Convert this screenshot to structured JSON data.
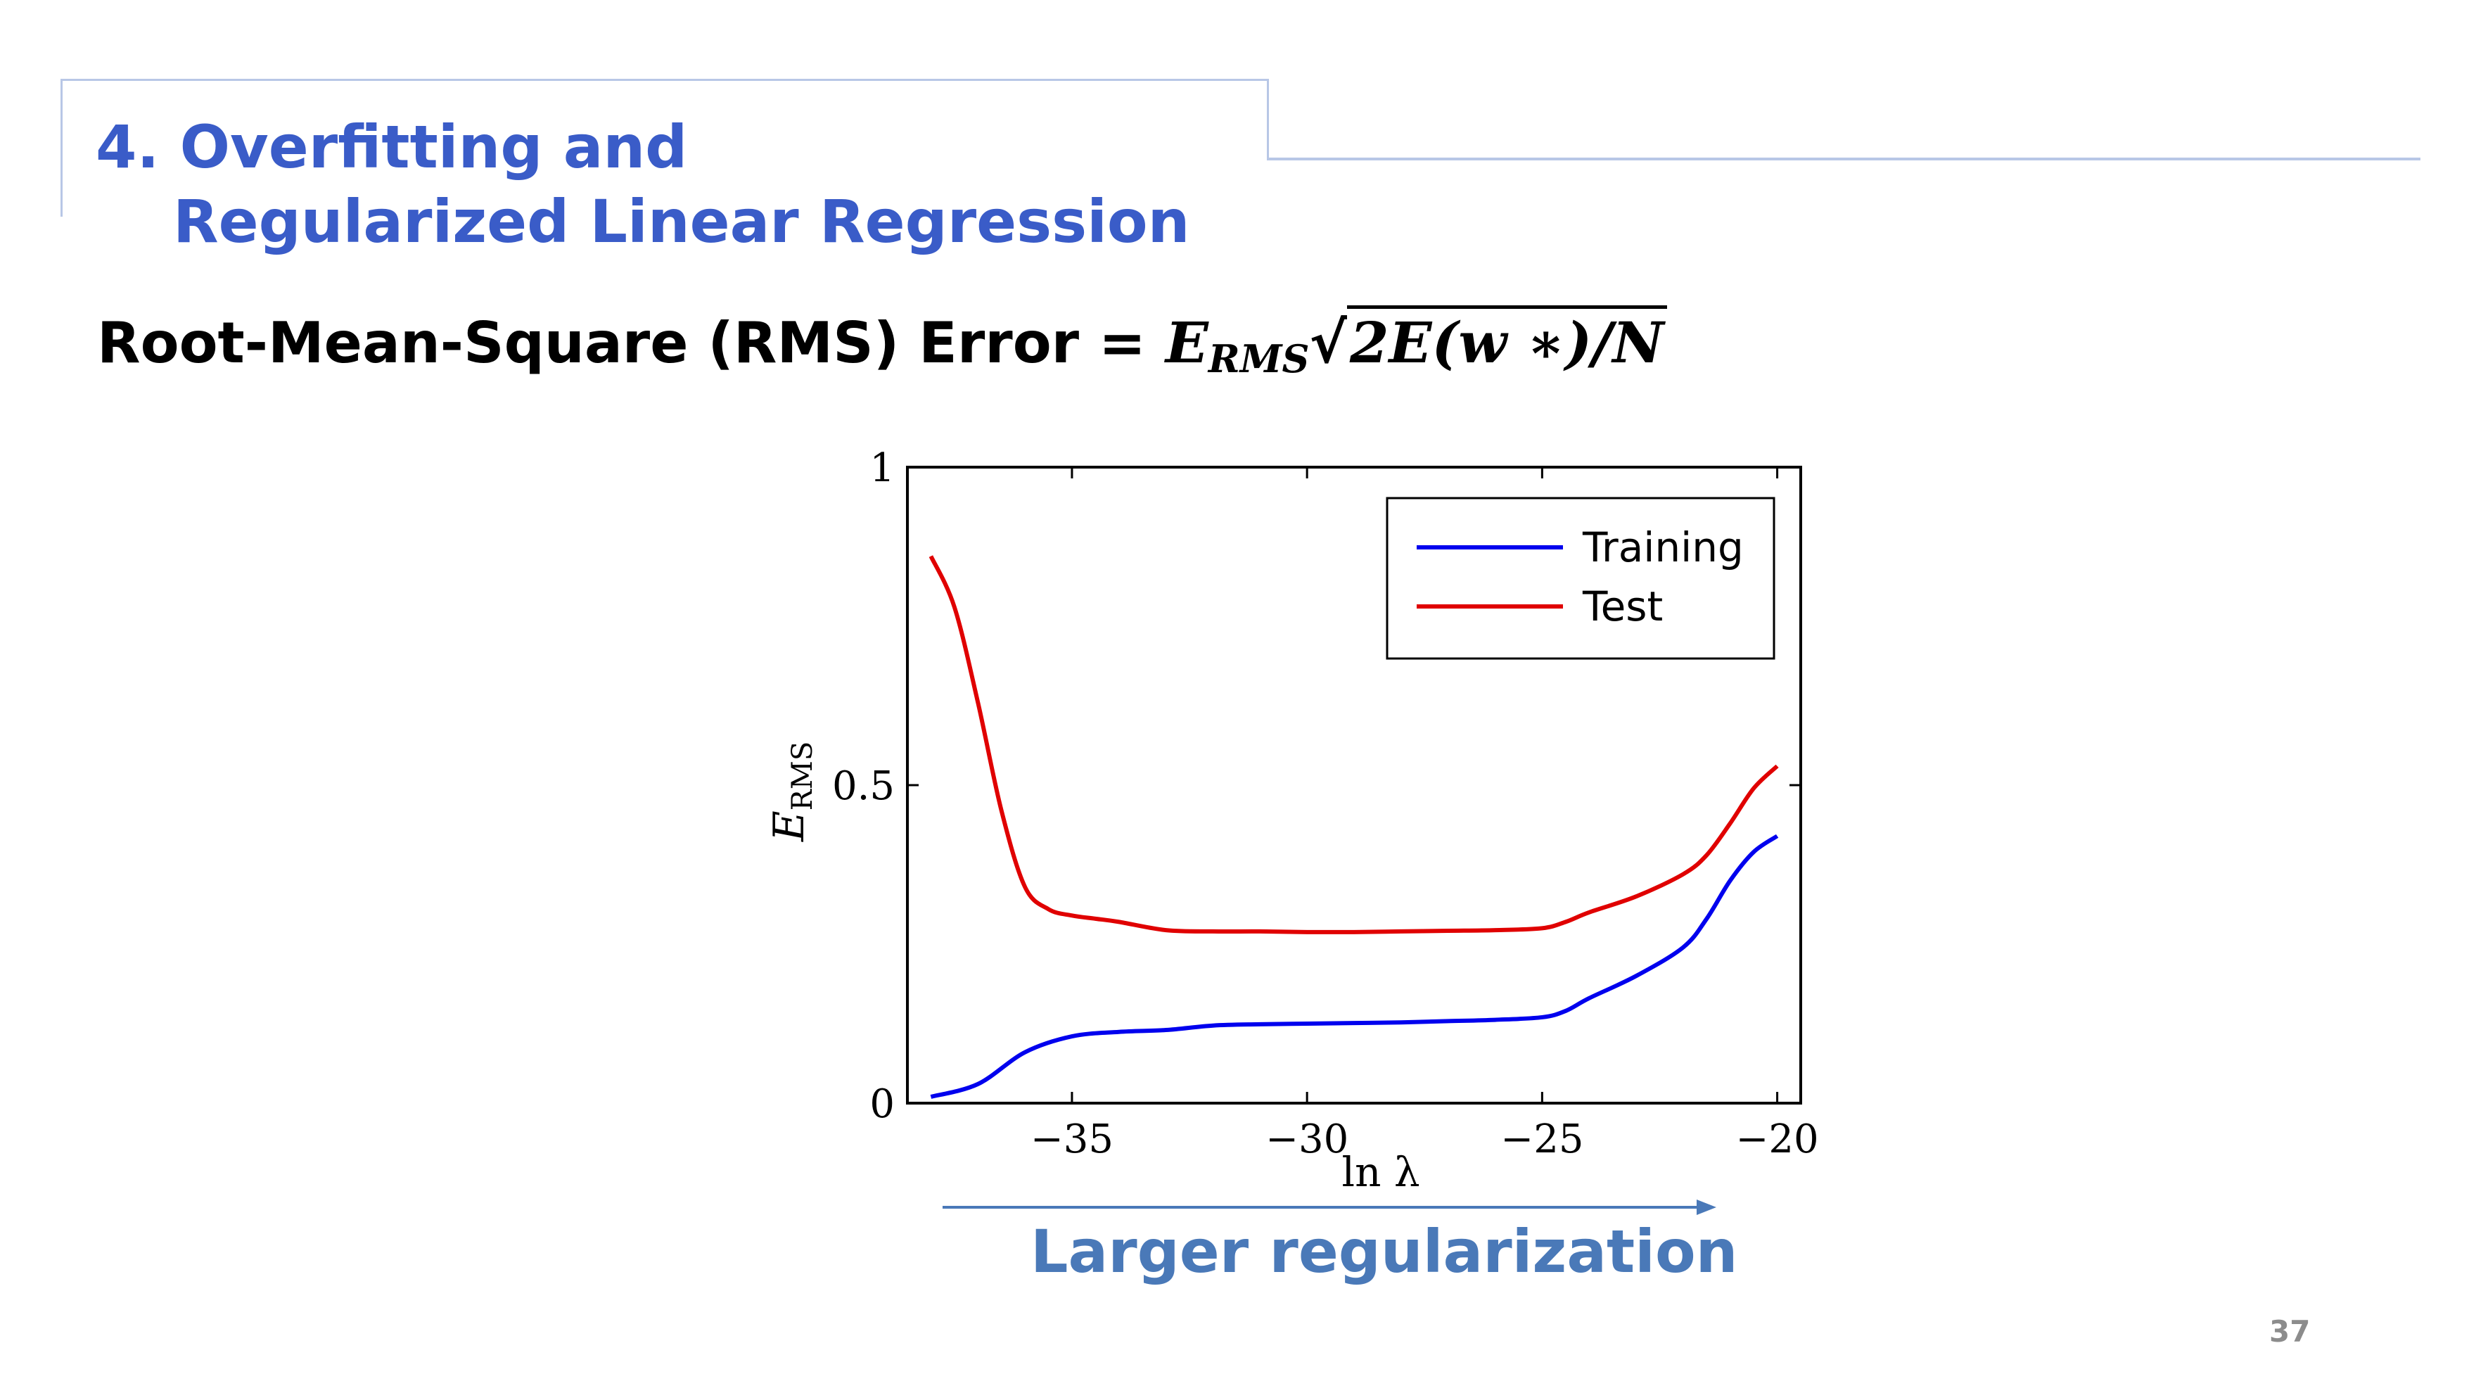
{
  "slide": {
    "title_line1": "4. Overfitting and",
    "title_line2": "Regularized Linear Regression",
    "formula_label": "Root-Mean-Square (RMS) Error =",
    "formula_lhs": "E",
    "formula_lhs_sub": "RMS",
    "formula_rhs": "2E(w ∗)/N",
    "caption": "Larger regularization",
    "page_number": "37",
    "colors": {
      "title": "#3a5cc8",
      "caption": "#4a79b8",
      "frame": "#b8c7e6",
      "arrow": "#4a79b8"
    }
  },
  "chart_data": {
    "type": "line",
    "xlabel": "ln λ",
    "ylabel": "E",
    "ylabel_sub": "RMS",
    "xlim": [
      -38.5,
      -19.5
    ],
    "ylim": [
      0,
      1
    ],
    "xticks": [
      -35,
      -30,
      -25,
      -20
    ],
    "xtick_labels": [
      "−35",
      "−30",
      "−25",
      "−20"
    ],
    "yticks": [
      0,
      0.5,
      1
    ],
    "ytick_labels": [
      "0",
      "0.5",
      "1"
    ],
    "legend_position": "top-right",
    "series": [
      {
        "name": "Training",
        "color": "#0000ee",
        "x": [
          -38,
          -37,
          -36,
          -35,
          -34,
          -33,
          -32,
          -31,
          -30,
          -29,
          -28,
          -27,
          -26,
          -25,
          -24.5,
          -24,
          -23,
          -22,
          -21.5,
          -21,
          -20.5,
          -20
        ],
        "y": [
          0.01,
          0.03,
          0.08,
          0.105,
          0.112,
          0.115,
          0.122,
          0.124,
          0.125,
          0.126,
          0.127,
          0.129,
          0.131,
          0.135,
          0.145,
          0.165,
          0.2,
          0.245,
          0.29,
          0.35,
          0.395,
          0.42
        ]
      },
      {
        "name": "Test",
        "color": "#e00000",
        "x": [
          -38,
          -37.5,
          -37,
          -36.5,
          -36,
          -35.5,
          -35,
          -34.5,
          -34,
          -33,
          -32,
          -31,
          -30,
          -29,
          -28,
          -27,
          -26,
          -25,
          -24.5,
          -24,
          -23,
          -22,
          -21.5,
          -21,
          -20.5,
          -20
        ],
        "y": [
          0.86,
          0.78,
          0.63,
          0.46,
          0.34,
          0.305,
          0.295,
          0.29,
          0.285,
          0.272,
          0.27,
          0.27,
          0.269,
          0.269,
          0.27,
          0.271,
          0.272,
          0.275,
          0.285,
          0.3,
          0.325,
          0.36,
          0.39,
          0.44,
          0.495,
          0.53
        ]
      }
    ]
  }
}
